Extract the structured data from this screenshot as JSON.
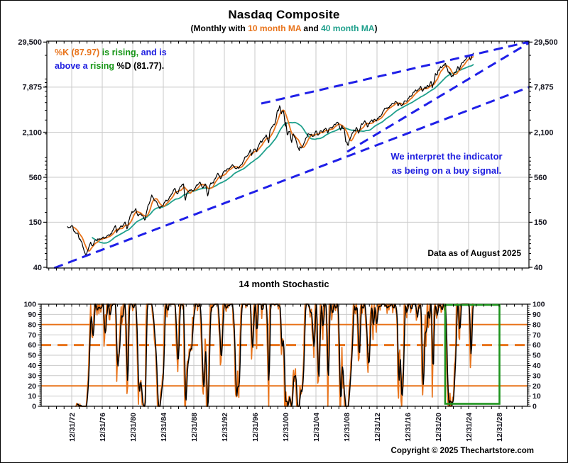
{
  "page": {
    "annotation_kd_line1": [
      {
        "text": "%K (87.97)",
        "color": "#E8731A"
      },
      {
        "text": " is rising,",
        "color": "#189618"
      },
      {
        "text": " and is",
        "color": "#2020E0"
      }
    ],
    "annotation_kd_line2": [
      {
        "text": "above a ",
        "color": "#2020E0"
      },
      {
        "text": "rising",
        "color": "#189618"
      },
      {
        "text": " %D (81.77).",
        "color": "#000000"
      }
    ],
    "buy_signal_line1": "We interpret the indicator",
    "buy_signal_line2": "as being on a buy signal.",
    "data_as_of": "Data as of August 2025",
    "copyright": "Copyright © 2025 Thechartstore.com"
  },
  "colors": {
    "price": "#000000",
    "ma10": "#E8731A",
    "ma40": "#1FA08C",
    "trendline": "#1F1FE8",
    "levels": "#E8731A",
    "highlight": "#1E941E",
    "grid": "#CACACA",
    "axis": "#000000",
    "axis_text": "#15151F"
  },
  "chart_data": [
    {
      "type": "line",
      "title": "Nasdaq Composite",
      "subtitle_segments": [
        {
          "text": "(Monthly with ",
          "color": "#000000"
        },
        {
          "text": "10 month MA",
          "color": "#E8731A"
        },
        {
          "text": " and ",
          "color": "#000000"
        },
        {
          "text": "40 month MA",
          "color": "#1FA08C"
        },
        {
          "text": ")",
          "color": "#000000"
        }
      ],
      "scale": "log",
      "series_names": [
        "Nasdaq Composite monthly close",
        "10 month MA",
        "40 month MA"
      ],
      "y_ticks": [
        {
          "v": 29500,
          "label": "29,500"
        },
        {
          "v": 7875,
          "label": "7,875"
        },
        {
          "v": 2100,
          "label": "2,100"
        },
        {
          "v": 560,
          "label": "560"
        },
        {
          "v": 150,
          "label": "150"
        },
        {
          "v": 40,
          "label": "40"
        }
      ],
      "y_minor_ticks": [
        50,
        60,
        70,
        80,
        90,
        100,
        200,
        300,
        400,
        500,
        600,
        700,
        800,
        900,
        1000,
        2000,
        3000,
        4000,
        5000,
        6000,
        7000,
        8000,
        9000,
        10000,
        20000
      ],
      "trendlines": [
        {
          "name": "lower-support",
          "from": [
            1970.7,
            39.2
          ],
          "to": [
            2032.9,
            7850
          ]
        },
        {
          "name": "mid-support",
          "from": [
            2009.1,
            1185
          ],
          "to": [
            2032.9,
            28800
          ]
        },
        {
          "name": "upper-resistance",
          "from": [
            1997.84,
            4870
          ],
          "to": [
            2032.9,
            29700
          ]
        }
      ],
      "anchors": [
        [
          1972.4,
          128
        ],
        [
          1972.8,
          130
        ],
        [
          1973.04,
          136
        ],
        [
          1973.3,
          117
        ],
        [
          1973.6,
          106
        ],
        [
          1973.8,
          110
        ],
        [
          1974.0,
          92
        ],
        [
          1974.3,
          84
        ],
        [
          1974.55,
          70
        ],
        [
          1974.8,
          56
        ],
        [
          1975.0,
          62
        ],
        [
          1975.15,
          68
        ],
        [
          1975.5,
          83
        ],
        [
          1975.75,
          74
        ],
        [
          1976.1,
          90
        ],
        [
          1976.5,
          90
        ],
        [
          1976.9,
          94
        ],
        [
          1977.3,
          95
        ],
        [
          1977.7,
          100
        ],
        [
          1977.95,
          105
        ],
        [
          1978.2,
          106
        ],
        [
          1978.7,
          139
        ],
        [
          1978.9,
          111
        ],
        [
          1979.0,
          117
        ],
        [
          1979.35,
          130
        ],
        [
          1979.7,
          135
        ],
        [
          1979.95,
          151
        ],
        [
          1980.25,
          124
        ],
        [
          1980.5,
          158
        ],
        [
          1980.9,
          208
        ],
        [
          1981.1,
          198
        ],
        [
          1981.4,
          223
        ],
        [
          1981.7,
          175
        ],
        [
          1981.95,
          196
        ],
        [
          1982.2,
          184
        ],
        [
          1982.6,
          160
        ],
        [
          1982.95,
          232
        ],
        [
          1983.2,
          270
        ],
        [
          1983.5,
          328
        ],
        [
          1983.8,
          292
        ],
        [
          1984.0,
          279
        ],
        [
          1984.3,
          250
        ],
        [
          1984.55,
          225
        ],
        [
          1984.95,
          247
        ],
        [
          1985.3,
          280
        ],
        [
          1985.7,
          292
        ],
        [
          1985.95,
          325
        ],
        [
          1986.3,
          374
        ],
        [
          1986.55,
          406
        ],
        [
          1986.75,
          350
        ],
        [
          1986.95,
          349
        ],
        [
          1987.2,
          430
        ],
        [
          1987.65,
          455
        ],
        [
          1987.8,
          323
        ],
        [
          1987.9,
          292
        ],
        [
          1988.05,
          344
        ],
        [
          1988.5,
          394
        ],
        [
          1988.8,
          372
        ],
        [
          1988.95,
          381
        ],
        [
          1989.3,
          428
        ],
        [
          1989.75,
          486
        ],
        [
          1989.95,
          455
        ],
        [
          1990.05,
          416
        ],
        [
          1990.4,
          435
        ],
        [
          1990.55,
          462
        ],
        [
          1990.8,
          325
        ],
        [
          1990.95,
          374
        ],
        [
          1991.2,
          476
        ],
        [
          1991.55,
          476
        ],
        [
          1991.96,
          586
        ],
        [
          1992.1,
          630
        ],
        [
          1992.5,
          547
        ],
        [
          1992.7,
          580
        ],
        [
          1992.95,
          677
        ],
        [
          1993.3,
          690
        ],
        [
          1993.7,
          740
        ],
        [
          1993.95,
          777
        ],
        [
          1994.2,
          804
        ],
        [
          1994.5,
          706
        ],
        [
          1994.8,
          750
        ],
        [
          1994.95,
          752
        ],
        [
          1995.3,
          820
        ],
        [
          1995.6,
          960
        ],
        [
          1995.95,
          1052
        ],
        [
          1996.15,
          1100
        ],
        [
          1996.45,
          1250
        ],
        [
          1996.55,
          1081
        ],
        [
          1996.95,
          1291
        ],
        [
          1997.25,
          1222
        ],
        [
          1997.55,
          1450
        ],
        [
          1997.75,
          1650
        ],
        [
          1997.95,
          1570
        ],
        [
          1998.2,
          1780
        ],
        [
          1998.5,
          1940
        ],
        [
          1998.8,
          1499
        ],
        [
          1998.95,
          2193
        ],
        [
          1999.3,
          2470
        ],
        [
          1999.5,
          2686
        ],
        [
          1999.7,
          2746
        ],
        [
          1999.95,
          4069
        ],
        [
          2000.12,
          3940
        ],
        [
          2000.2,
          4697
        ],
        [
          2000.28,
          4573
        ],
        [
          2000.37,
          3861
        ],
        [
          2000.45,
          3401
        ],
        [
          2000.53,
          3966
        ],
        [
          2000.62,
          3767
        ],
        [
          2000.7,
          4206
        ],
        [
          2000.78,
          3673
        ],
        [
          2000.87,
          3370
        ],
        [
          2000.93,
          2598
        ],
        [
          2000.99,
          2471
        ],
        [
          2001.08,
          2773
        ],
        [
          2001.2,
          2152
        ],
        [
          2001.28,
          1840
        ],
        [
          2001.37,
          2116
        ],
        [
          2001.45,
          2110
        ],
        [
          2001.53,
          2161
        ],
        [
          2001.62,
          2027
        ],
        [
          2001.7,
          1805
        ],
        [
          2001.78,
          1498
        ],
        [
          2001.87,
          1690
        ],
        [
          2001.93,
          1931
        ],
        [
          2001.99,
          1950
        ],
        [
          2002.12,
          1934
        ],
        [
          2002.2,
          1731
        ],
        [
          2002.28,
          1845
        ],
        [
          2002.37,
          1688
        ],
        [
          2002.45,
          1616
        ],
        [
          2002.53,
          1463
        ],
        [
          2002.62,
          1328
        ],
        [
          2002.7,
          1315
        ],
        [
          2002.78,
          1172
        ],
        [
          2002.87,
          1330
        ],
        [
          2002.93,
          1479
        ],
        [
          2002.99,
          1336
        ],
        [
          2003.2,
          1341
        ],
        [
          2003.4,
          1464
        ],
        [
          2003.6,
          1735
        ],
        [
          2003.8,
          1787
        ],
        [
          2003.95,
          2003
        ],
        [
          2004.2,
          1994
        ],
        [
          2004.4,
          1920
        ],
        [
          2004.6,
          1838
        ],
        [
          2004.8,
          1950
        ],
        [
          2004.95,
          2175
        ],
        [
          2005.12,
          2062
        ],
        [
          2005.3,
          1922
        ],
        [
          2005.6,
          2185
        ],
        [
          2005.8,
          2120
        ],
        [
          2005.95,
          2205
        ],
        [
          2006.3,
          2340
        ],
        [
          2006.55,
          2091
        ],
        [
          2006.8,
          2367
        ],
        [
          2006.95,
          2415
        ],
        [
          2007.15,
          2416
        ],
        [
          2007.45,
          2604
        ],
        [
          2007.8,
          2859
        ],
        [
          2007.95,
          2652
        ],
        [
          2008.12,
          2390
        ],
        [
          2008.2,
          2271
        ],
        [
          2008.4,
          2523
        ],
        [
          2008.55,
          2293
        ],
        [
          2008.7,
          2368
        ],
        [
          2008.78,
          2092
        ],
        [
          2008.87,
          1721
        ],
        [
          2008.93,
          1536
        ],
        [
          2008.99,
          1577
        ],
        [
          2009.12,
          1476
        ],
        [
          2009.2,
          1377
        ],
        [
          2009.28,
          1529
        ],
        [
          2009.4,
          1717
        ],
        [
          2009.6,
          1835
        ],
        [
          2009.8,
          2045
        ],
        [
          2009.95,
          2269
        ],
        [
          2010.12,
          2147
        ],
        [
          2010.3,
          2398
        ],
        [
          2010.45,
          2257
        ],
        [
          2010.55,
          2109
        ],
        [
          2010.7,
          2114
        ],
        [
          2010.8,
          2369
        ],
        [
          2010.95,
          2653
        ],
        [
          2011.12,
          2700
        ],
        [
          2011.35,
          2874
        ],
        [
          2011.6,
          2756
        ],
        [
          2011.78,
          2415
        ],
        [
          2011.87,
          2684
        ],
        [
          2011.95,
          2605
        ],
        [
          2012.2,
          2967
        ],
        [
          2012.28,
          3092
        ],
        [
          2012.45,
          2827
        ],
        [
          2012.7,
          3067
        ],
        [
          2012.87,
          2977
        ],
        [
          2012.95,
          3020
        ],
        [
          2013.2,
          3160
        ],
        [
          2013.45,
          3403
        ],
        [
          2013.7,
          3590
        ],
        [
          2013.95,
          4177
        ],
        [
          2014.2,
          4308
        ],
        [
          2014.3,
          4115
        ],
        [
          2014.55,
          4408
        ],
        [
          2014.8,
          4631
        ],
        [
          2014.95,
          4736
        ],
        [
          2015.2,
          4964
        ],
        [
          2015.55,
          5128
        ],
        [
          2015.75,
          4620
        ],
        [
          2015.95,
          5007
        ],
        [
          2016.08,
          4614
        ],
        [
          2016.16,
          4558
        ],
        [
          2016.45,
          4843
        ],
        [
          2016.55,
          5162
        ],
        [
          2016.8,
          5189
        ],
        [
          2016.95,
          5383
        ],
        [
          2017.2,
          5825
        ],
        [
          2017.5,
          6140
        ],
        [
          2017.8,
          6728
        ],
        [
          2017.95,
          6903
        ],
        [
          2018.08,
          7411
        ],
        [
          2018.2,
          7063
        ],
        [
          2018.3,
          7066
        ],
        [
          2018.55,
          7510
        ],
        [
          2018.7,
          8110
        ],
        [
          2018.78,
          8046
        ],
        [
          2018.87,
          7306
        ],
        [
          2018.95,
          6635
        ],
        [
          2019.08,
          7282
        ],
        [
          2019.3,
          8175
        ],
        [
          2019.41,
          7453
        ],
        [
          2019.55,
          8175
        ],
        [
          2019.7,
          7963
        ],
        [
          2019.87,
          8292
        ],
        [
          2019.95,
          8973
        ],
        [
          2020.08,
          9151
        ],
        [
          2020.16,
          8567
        ],
        [
          2020.24,
          7700
        ],
        [
          2020.4,
          8890
        ],
        [
          2020.55,
          10059
        ],
        [
          2020.66,
          11775
        ],
        [
          2020.74,
          11168
        ],
        [
          2020.87,
          10912
        ],
        [
          2020.93,
          12199
        ],
        [
          2020.99,
          12888
        ],
        [
          2021.08,
          13071
        ],
        [
          2021.2,
          13247
        ],
        [
          2021.3,
          13963
        ],
        [
          2021.45,
          13749
        ],
        [
          2021.55,
          14504
        ],
        [
          2021.7,
          15259
        ],
        [
          2021.78,
          14449
        ],
        [
          2021.87,
          15538
        ],
        [
          2021.95,
          15645
        ],
        [
          2022.08,
          14240
        ],
        [
          2022.2,
          14220
        ],
        [
          2022.28,
          12335
        ],
        [
          2022.4,
          12081
        ],
        [
          2022.45,
          11029
        ],
        [
          2022.55,
          12391
        ],
        [
          2022.62,
          11816
        ],
        [
          2022.7,
          10576
        ],
        [
          2022.8,
          10988
        ],
        [
          2022.87,
          11468
        ],
        [
          2022.95,
          10466
        ],
        [
          2023.08,
          11585
        ],
        [
          2023.2,
          12222
        ],
        [
          2023.3,
          12227
        ],
        [
          2023.45,
          13241
        ],
        [
          2023.55,
          14346
        ],
        [
          2023.62,
          14035
        ],
        [
          2023.7,
          13219
        ],
        [
          2023.8,
          12851
        ],
        [
          2023.87,
          14226
        ],
        [
          2023.95,
          15011
        ],
        [
          2024.08,
          15628
        ],
        [
          2024.2,
          16379
        ],
        [
          2024.3,
          15658
        ],
        [
          2024.45,
          17733
        ],
        [
          2024.55,
          17599
        ],
        [
          2024.62,
          17713
        ],
        [
          2024.7,
          18189
        ],
        [
          2024.78,
          18239
        ],
        [
          2024.87,
          19218
        ],
        [
          2024.95,
          19311
        ],
        [
          2025.08,
          19627
        ],
        [
          2025.16,
          18847
        ],
        [
          2025.24,
          17299
        ],
        [
          2025.33,
          17446
        ],
        [
          2025.41,
          19114
        ],
        [
          2025.49,
          20370
        ],
        [
          2025.58,
          21122
        ],
        [
          2025.66,
          21456
        ]
      ],
      "ma_windows": [
        10,
        40
      ]
    },
    {
      "type": "line",
      "title": "14 month Stochastic",
      "period": 14,
      "percent_k": 87.97,
      "percent_d": 81.77,
      "ylim": [
        0,
        100
      ],
      "y_ticks": [
        0,
        10,
        20,
        30,
        40,
        50,
        60,
        70,
        80,
        90,
        100
      ],
      "levels": [
        {
          "value": 80,
          "style": "solid"
        },
        {
          "value": 60,
          "style": "dashed"
        },
        {
          "value": 20,
          "style": "solid"
        }
      ],
      "x_labels": [
        "12/31/72",
        "12/31/76",
        "12/31/80",
        "12/31/84",
        "12/31/88",
        "12/31/92",
        "12/31/96",
        "12/31/00",
        "12/31/04",
        "12/31/08",
        "12/31/12",
        "12/31/16",
        "12/31/20",
        "12/31/24",
        "12/31/28"
      ],
      "highlight_box": {
        "from_year": 2021.93,
        "to_year": 2029.05
      }
    }
  ]
}
